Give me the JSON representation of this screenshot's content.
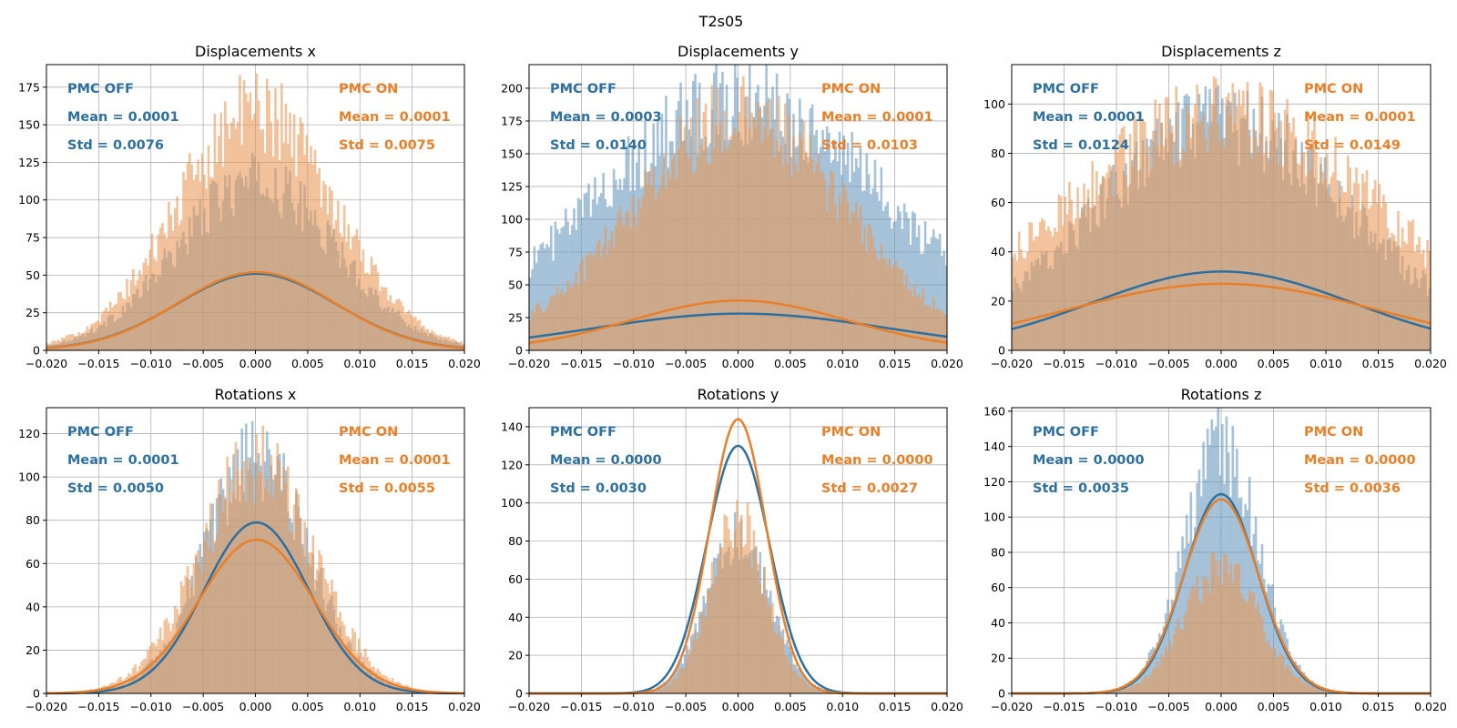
{
  "figure_title": "T2s05",
  "colors": {
    "off": "#2f6f9e",
    "on": "#e87f2a",
    "off_fill": "#6b9ac0",
    "on_fill": "#e99a5a"
  },
  "series_labels": {
    "off": "PMC OFF",
    "on": "PMC ON"
  },
  "chart_data": [
    {
      "type": "bar",
      "title": "Displacements x",
      "xlim": [
        -0.02,
        0.02
      ],
      "ylim": [
        0,
        190
      ],
      "xticks": [
        "-0.020",
        "-0.015",
        "-0.010",
        "-0.005",
        "0.000",
        "0.005",
        "0.010",
        "0.015",
        "0.020"
      ],
      "yticks": [
        0,
        25,
        50,
        75,
        100,
        125,
        150,
        175
      ],
      "grid": true,
      "series": [
        {
          "key": "off",
          "mean_text": "Mean = 0.0001",
          "std_text": "Std = 0.0076",
          "mean": 0.0001,
          "std": 0.0076,
          "hist_peak": 112,
          "fit_peak": 51
        },
        {
          "key": "on",
          "mean_text": "Mean = 0.0001",
          "std_text": "Std = 0.0075",
          "mean": 0.0001,
          "std": 0.0075,
          "hist_peak": 160,
          "fit_peak": 52
        }
      ]
    },
    {
      "type": "bar",
      "title": "Displacements y",
      "xlim": [
        -0.02,
        0.02
      ],
      "ylim": [
        0,
        218
      ],
      "xticks": [
        "-0.020",
        "-0.015",
        "-0.010",
        "-0.005",
        "0.000",
        "0.005",
        "0.010",
        "0.015",
        "0.020"
      ],
      "yticks": [
        0,
        25,
        50,
        75,
        100,
        125,
        150,
        175,
        200
      ],
      "grid": true,
      "series": [
        {
          "key": "off",
          "mean_text": "Mean = 0.0003",
          "std_text": "Std = 0.0140",
          "mean": 0.0003,
          "std": 0.014,
          "hist_peak": 190,
          "fit_peak": 28
        },
        {
          "key": "on",
          "mean_text": "Mean = 0.0001",
          "std_text": "Std = 0.0103",
          "mean": 0.0001,
          "std": 0.0103,
          "hist_peak": 178,
          "fit_peak": 38
        }
      ]
    },
    {
      "type": "bar",
      "title": "Displacements z",
      "xlim": [
        -0.02,
        0.02
      ],
      "ylim": [
        0,
        116
      ],
      "xticks": [
        "-0.020",
        "-0.015",
        "-0.010",
        "-0.005",
        "0.000",
        "0.005",
        "0.010",
        "0.015",
        "0.020"
      ],
      "yticks": [
        0,
        20,
        40,
        60,
        80,
        100
      ],
      "grid": true,
      "series": [
        {
          "key": "off",
          "mean_text": "Mean = 0.0001",
          "std_text": "Std = 0.0124",
          "mean": 0.0001,
          "std": 0.0124,
          "hist_peak": 92,
          "fit_peak": 32
        },
        {
          "key": "on",
          "mean_text": "Mean = 0.0001",
          "std_text": "Std = 0.0149",
          "mean": 0.0001,
          "std": 0.0149,
          "hist_peak": 96,
          "fit_peak": 27
        }
      ]
    },
    {
      "type": "bar",
      "title": "Rotations x",
      "xlim": [
        -0.02,
        0.02
      ],
      "ylim": [
        0,
        132
      ],
      "xticks": [
        "-0.020",
        "-0.015",
        "-0.010",
        "-0.005",
        "0.000",
        "0.005",
        "0.010",
        "0.015",
        "0.020"
      ],
      "yticks": [
        0,
        20,
        40,
        60,
        80,
        100,
        120
      ],
      "grid": true,
      "series": [
        {
          "key": "off",
          "mean_text": "Mean = 0.0001",
          "std_text": "Std = 0.0050",
          "mean": 0.0001,
          "std": 0.005,
          "hist_peak": 108,
          "fit_peak": 79
        },
        {
          "key": "on",
          "mean_text": "Mean = 0.0001",
          "std_text": "Std = 0.0055",
          "mean": 0.0001,
          "std": 0.0055,
          "hist_peak": 106,
          "fit_peak": 71
        }
      ]
    },
    {
      "type": "bar",
      "title": "Rotations y",
      "xlim": [
        -0.02,
        0.02
      ],
      "ylim": [
        0,
        150
      ],
      "xticks": [
        "-0.020",
        "-0.015",
        "-0.010",
        "-0.005",
        "0.000",
        "0.005",
        "0.010",
        "0.015",
        "0.020"
      ],
      "yticks": [
        0,
        20,
        40,
        60,
        80,
        100,
        120,
        140
      ],
      "grid": true,
      "series": [
        {
          "key": "off",
          "mean_text": "Mean = 0.0000",
          "std_text": "Std = 0.0030",
          "mean": 0.0,
          "std": 0.003,
          "hist_peak": 82,
          "fit_peak": 130
        },
        {
          "key": "on",
          "mean_text": "Mean = 0.0000",
          "std_text": "Std = 0.0027",
          "mean": 0.0,
          "std": 0.0027,
          "hist_peak": 90,
          "fit_peak": 144
        }
      ]
    },
    {
      "type": "bar",
      "title": "Rotations z",
      "xlim": [
        -0.02,
        0.02
      ],
      "ylim": [
        0,
        162
      ],
      "xticks": [
        "-0.020",
        "-0.015",
        "-0.010",
        "-0.005",
        "0.000",
        "0.005",
        "0.010",
        "0.015",
        "0.020"
      ],
      "yticks": [
        0,
        20,
        40,
        60,
        80,
        100,
        120,
        140,
        160
      ],
      "grid": true,
      "series": [
        {
          "key": "off",
          "mean_text": "Mean = 0.0000",
          "std_text": "Std = 0.0035",
          "mean": 0.0,
          "std": 0.0035,
          "hist_peak": 140,
          "fit_peak": 113
        },
        {
          "key": "on",
          "mean_text": "Mean = 0.0000",
          "std_text": "Std = 0.0036",
          "mean": 0.0,
          "std": 0.0036,
          "hist_peak": 70,
          "fit_peak": 110
        }
      ]
    }
  ]
}
